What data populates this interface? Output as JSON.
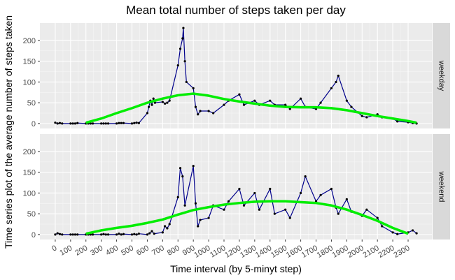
{
  "colors": {
    "panel_bg": "#ebebeb",
    "grid_major": "#ffffff",
    "grid_minor": "#f5f5f5",
    "strip_bg": "#d9d9d9",
    "line": "#00008b",
    "point": "#000000",
    "smooth": "#00ee00",
    "ribbon": "#bdbdbd",
    "text": "#000000",
    "tick_text": "#4d4d4d"
  },
  "chart_data": {
    "type": "line",
    "title": "Mean total number of steps taken per day",
    "xlabel": "Time interval (by 5-minyt step)",
    "ylabel": "Time series plot of the average number of steps taken",
    "xlim": [
      -100,
      2455
    ],
    "ylim": [
      -12,
      242
    ],
    "x_ticks": [
      0,
      100,
      200,
      300,
      400,
      500,
      600,
      700,
      800,
      900,
      1000,
      1100,
      1200,
      1300,
      1400,
      1500,
      1600,
      1700,
      1800,
      1900,
      2000,
      2100,
      2200,
      2300
    ],
    "y_ticks": [
      0,
      50,
      100,
      150,
      200
    ],
    "grid": true,
    "facet_direction": "vertical",
    "facets": [
      {
        "name": "weekday",
        "series": {
          "x": [
            0,
            15,
            30,
            45,
            100,
            115,
            130,
            145,
            200,
            215,
            230,
            245,
            300,
            315,
            330,
            345,
            400,
            415,
            430,
            445,
            500,
            515,
            530,
            545,
            600,
            610,
            620,
            630,
            640,
            650,
            700,
            715,
            730,
            745,
            800,
            815,
            830,
            835,
            845,
            855,
            900,
            915,
            930,
            945,
            1000,
            1030,
            1100,
            1130,
            1200,
            1230,
            1300,
            1330,
            1400,
            1430,
            1500,
            1530,
            1600,
            1630,
            1700,
            1730,
            1800,
            1830,
            1845,
            1900,
            1930,
            2000,
            2030,
            2100,
            2130,
            2200,
            2230,
            2300,
            2330,
            2355
          ],
          "y": [
            2,
            0,
            1,
            0,
            0,
            0,
            0,
            1,
            0,
            0,
            0,
            0,
            0,
            0,
            0,
            0,
            0,
            1,
            1,
            1,
            0,
            1,
            2,
            1,
            25,
            40,
            55,
            45,
            60,
            50,
            52,
            48,
            50,
            55,
            140,
            180,
            205,
            230,
            150,
            100,
            85,
            40,
            22,
            30,
            30,
            25,
            45,
            55,
            70,
            45,
            55,
            45,
            55,
            45,
            45,
            35,
            60,
            40,
            35,
            50,
            85,
            100,
            115,
            55,
            40,
            18,
            15,
            22,
            15,
            12,
            5,
            3,
            1,
            0
          ]
        },
        "smooth": {
          "x": [
            200,
            300,
            400,
            500,
            600,
            700,
            800,
            900,
            1000,
            1100,
            1200,
            1300,
            1400,
            1500,
            1600,
            1700,
            1800,
            1900,
            2000,
            2100,
            2200,
            2300,
            2355
          ],
          "y": [
            2,
            12,
            25,
            37,
            50,
            60,
            68,
            72,
            67,
            59,
            53,
            48,
            43,
            40,
            39,
            39,
            37,
            32,
            25,
            18,
            12,
            6,
            2
          ]
        }
      },
      {
        "name": "weekend",
        "series": {
          "x": [
            0,
            15,
            30,
            45,
            100,
            115,
            130,
            145,
            200,
            215,
            230,
            245,
            300,
            315,
            330,
            345,
            400,
            415,
            430,
            445,
            500,
            515,
            530,
            545,
            600,
            615,
            630,
            645,
            700,
            715,
            730,
            745,
            800,
            815,
            830,
            845,
            900,
            915,
            930,
            945,
            1000,
            1030,
            1100,
            1130,
            1200,
            1230,
            1300,
            1330,
            1400,
            1430,
            1500,
            1530,
            1600,
            1630,
            1700,
            1730,
            1800,
            1830,
            1845,
            1900,
            1930,
            2000,
            2030,
            2100,
            2130,
            2200,
            2230,
            2300,
            2330,
            2355
          ],
          "y": [
            0,
            3,
            1,
            0,
            0,
            0,
            0,
            0,
            0,
            0,
            0,
            0,
            0,
            1,
            0,
            0,
            0,
            2,
            0,
            1,
            0,
            1,
            0,
            2,
            0,
            3,
            8,
            2,
            5,
            20,
            15,
            25,
            90,
            160,
            140,
            70,
            165,
            75,
            20,
            35,
            40,
            70,
            60,
            80,
            110,
            70,
            100,
            60,
            110,
            50,
            60,
            40,
            100,
            140,
            80,
            95,
            110,
            65,
            50,
            85,
            55,
            45,
            60,
            40,
            20,
            5,
            1,
            5,
            10,
            3
          ]
        },
        "smooth": {
          "x": [
            200,
            300,
            400,
            500,
            600,
            700,
            800,
            900,
            1000,
            1100,
            1200,
            1300,
            1400,
            1500,
            1600,
            1700,
            1800,
            1900,
            2000,
            2100,
            2200,
            2300
          ],
          "y": [
            2,
            10,
            16,
            21,
            28,
            36,
            48,
            59,
            66,
            72,
            76,
            79,
            80,
            80,
            78,
            76,
            70,
            60,
            47,
            33,
            16,
            2
          ]
        }
      }
    ]
  }
}
